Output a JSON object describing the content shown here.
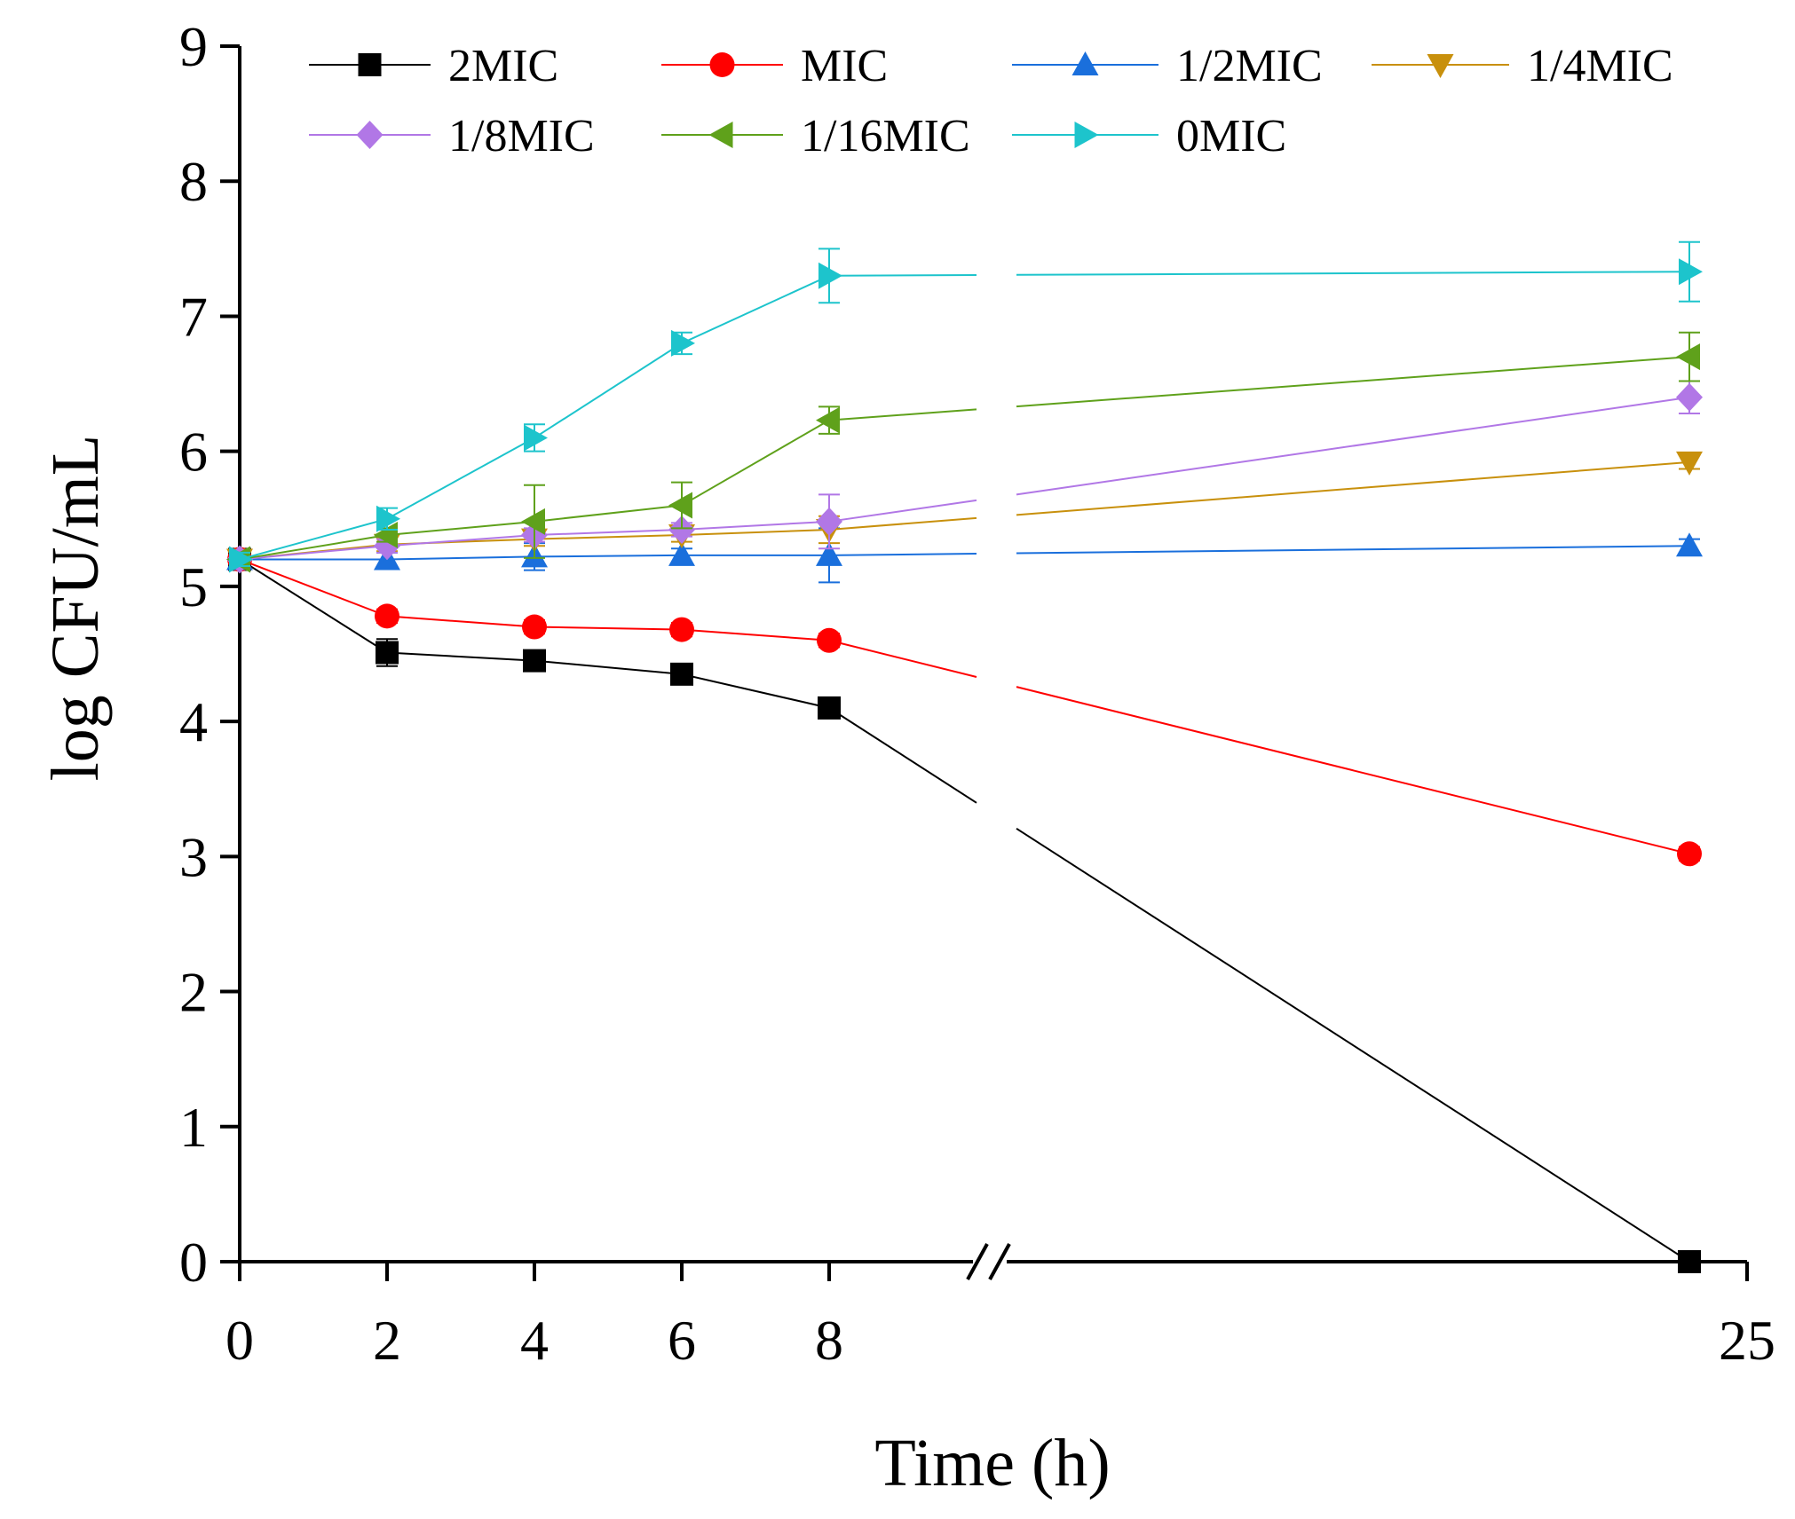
{
  "chart_data": {
    "type": "line",
    "title": "",
    "xlabel": "Time (h)",
    "ylabel": "log CFU/mL",
    "ylim": [
      0,
      9
    ],
    "y_ticks": [
      0,
      1,
      2,
      3,
      4,
      5,
      6,
      7,
      8,
      9
    ],
    "x_ticks": [
      0,
      2,
      4,
      6,
      8,
      25
    ],
    "x_axis_break": true,
    "grid": false,
    "legend_position": "top",
    "x": [
      0,
      2,
      4,
      6,
      8,
      24
    ],
    "series": [
      {
        "name": "2MIC",
        "color": "#000000",
        "marker": "square",
        "values": [
          5.2,
          4.51,
          4.45,
          4.35,
          4.1,
          0.0
        ],
        "errors": [
          0.05,
          0.1,
          0.05,
          0.05,
          0.05,
          0.02
        ]
      },
      {
        "name": "MIC",
        "color": "#ff0000",
        "marker": "circle",
        "values": [
          5.2,
          4.78,
          4.7,
          4.68,
          4.6,
          3.02
        ],
        "errors": [
          0.05,
          0.05,
          0.05,
          0.05,
          0.05,
          0.05
        ]
      },
      {
        "name": "1/2MIC",
        "color": "#1a6fdc",
        "marker": "triangle-up",
        "values": [
          5.2,
          5.2,
          5.22,
          5.23,
          5.23,
          5.3
        ],
        "errors": [
          0.05,
          0.05,
          0.1,
          0.05,
          0.2,
          0.05
        ]
      },
      {
        "name": "1/4MIC",
        "color": "#c8900c",
        "marker": "triangle-down",
        "values": [
          5.2,
          5.31,
          5.35,
          5.38,
          5.42,
          5.92
        ],
        "errors": [
          0.05,
          0.05,
          0.05,
          0.05,
          0.1,
          0.05
        ]
      },
      {
        "name": "1/8MIC",
        "color": "#b177e6",
        "marker": "diamond",
        "values": [
          5.2,
          5.3,
          5.38,
          5.42,
          5.48,
          6.4
        ],
        "errors": [
          0.05,
          0.05,
          0.05,
          0.05,
          0.2,
          0.12
        ]
      },
      {
        "name": "1/16MIC",
        "color": "#5fa11b",
        "marker": "triangle-left",
        "values": [
          5.2,
          5.38,
          5.48,
          5.6,
          6.23,
          6.7
        ],
        "errors": [
          0.05,
          0.05,
          0.27,
          0.17,
          0.1,
          0.18
        ]
      },
      {
        "name": "0MIC",
        "color": "#1dc4cc",
        "marker": "triangle-right",
        "values": [
          5.2,
          5.5,
          6.1,
          6.8,
          7.3,
          7.33
        ],
        "errors": [
          0.05,
          0.08,
          0.1,
          0.08,
          0.2,
          0.22
        ]
      }
    ]
  }
}
